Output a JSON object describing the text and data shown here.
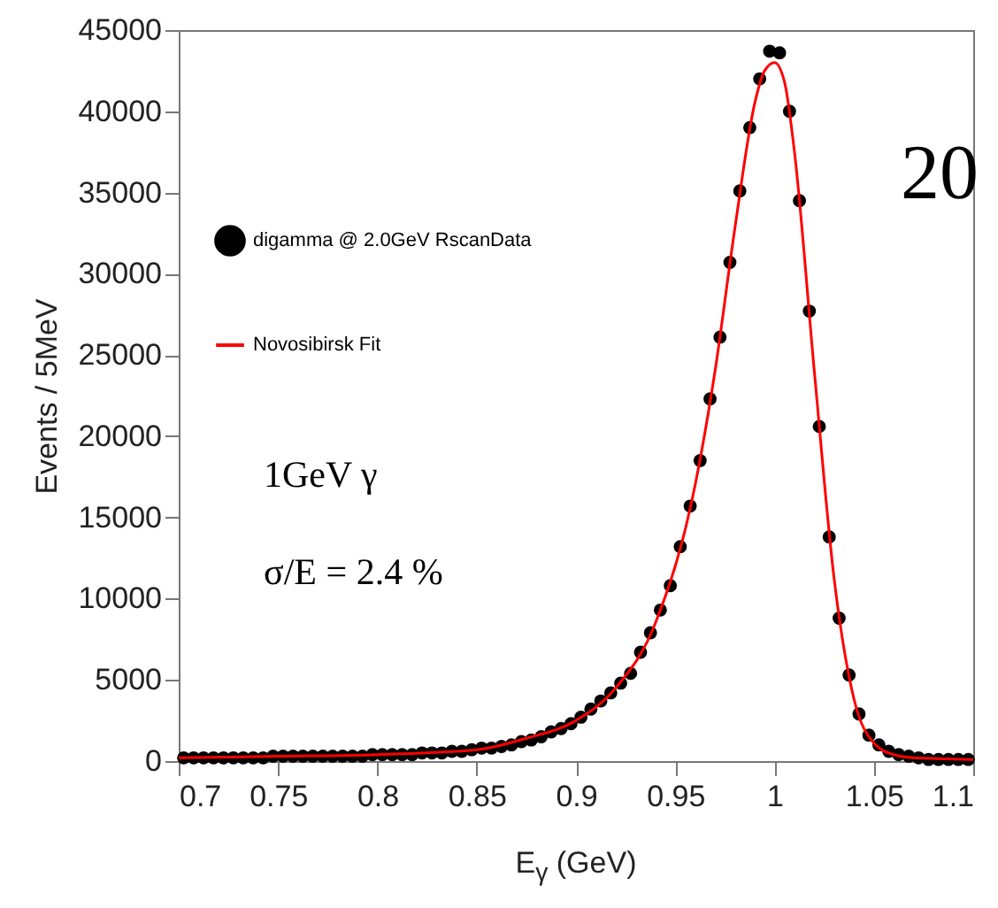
{
  "chart_data": {
    "type": "scatter",
    "xlabel": "E$_{γ}$ (GeV)",
    "ylabel": "Events / 5MeV",
    "xlim": [
      0.7,
      1.1
    ],
    "xticks": [
      0.7,
      0.75,
      0.8,
      0.85,
      0.9,
      0.95,
      1,
      1.05,
      1.1
    ],
    "ylim": [
      0,
      45000
    ],
    "yticks": [
      0,
      5000,
      10000,
      15000,
      20000,
      25000,
      30000,
      35000,
      40000,
      45000
    ],
    "legend": "top left",
    "annotations": [
      "1GeV γ",
      "σ/E = 2.4 %",
      "20"
    ],
    "series": [
      {
        "name": "digamma @ 2.0GeV RscanData",
        "type": "scatter",
        "marker": "circle",
        "color": "#000000",
        "x": [
          0.7025,
          0.7075,
          0.7125,
          0.7175,
          0.7225,
          0.7275,
          0.7325,
          0.7375,
          0.7425,
          0.7475,
          0.7525,
          0.7575,
          0.7625,
          0.7675,
          0.7725,
          0.7775,
          0.7825,
          0.7875,
          0.7925,
          0.7975,
          0.8025,
          0.8075,
          0.8125,
          0.8175,
          0.8225,
          0.8275,
          0.8325,
          0.8375,
          0.8425,
          0.8475,
          0.8525,
          0.8575,
          0.8625,
          0.8675,
          0.8725,
          0.8775,
          0.8825,
          0.8875,
          0.8925,
          0.8975,
          0.9025,
          0.9075,
          0.9125,
          0.9175,
          0.9225,
          0.9275,
          0.9325,
          0.9375,
          0.9425,
          0.9475,
          0.9525,
          0.9575,
          0.9625,
          0.9675,
          0.9725,
          0.9775,
          0.9825,
          0.9875,
          0.9925,
          0.9975,
          1.0025,
          1.0075,
          1.0125,
          1.0175,
          1.0225,
          1.0275,
          1.0325,
          1.0375,
          1.0425,
          1.0475,
          1.0525,
          1.0575,
          1.0625,
          1.0675,
          1.0725,
          1.0775,
          1.0825,
          1.0875,
          1.0925,
          1.0975
        ],
        "values": [
          200,
          200,
          200,
          200,
          200,
          200,
          200,
          200,
          200,
          300,
          300,
          300,
          300,
          300,
          300,
          300,
          300,
          300,
          300,
          400,
          400,
          400,
          400,
          400,
          500,
          500,
          500,
          600,
          600,
          700,
          800,
          800,
          900,
          1000,
          1200,
          1300,
          1500,
          1800,
          2000,
          2300,
          2700,
          3200,
          3700,
          4200,
          4800,
          5400,
          6700,
          7900,
          9300,
          10800,
          13200,
          15700,
          18500,
          22300,
          26100,
          30700,
          35100,
          39000,
          42000,
          43700,
          43600,
          40000,
          34500,
          27700,
          20600,
          13800,
          8800,
          5300,
          2900,
          1600,
          1000,
          600,
          400,
          300,
          200,
          100,
          100,
          100,
          100,
          100
        ]
      },
      {
        "name": "Novosibirsk Fit",
        "type": "line",
        "marker": "none",
        "line_style": "solid",
        "color": "#ff0000",
        "x": [
          0.7,
          0.75,
          0.8,
          0.85,
          0.875,
          0.9,
          0.92,
          0.94,
          0.96,
          0.97,
          0.98,
          0.99,
          0.995,
          1.0,
          1.005,
          1.01,
          1.02,
          1.03,
          1.04,
          1.05,
          1.06,
          1.07,
          1.1
        ],
        "values": [
          200,
          300,
          400,
          700,
          1400,
          2500,
          4500,
          8500,
          17000,
          24000,
          32800,
          40500,
          42500,
          43000,
          41800,
          37500,
          24000,
          11200,
          3800,
          1100,
          400,
          200,
          100
        ]
      }
    ]
  }
}
